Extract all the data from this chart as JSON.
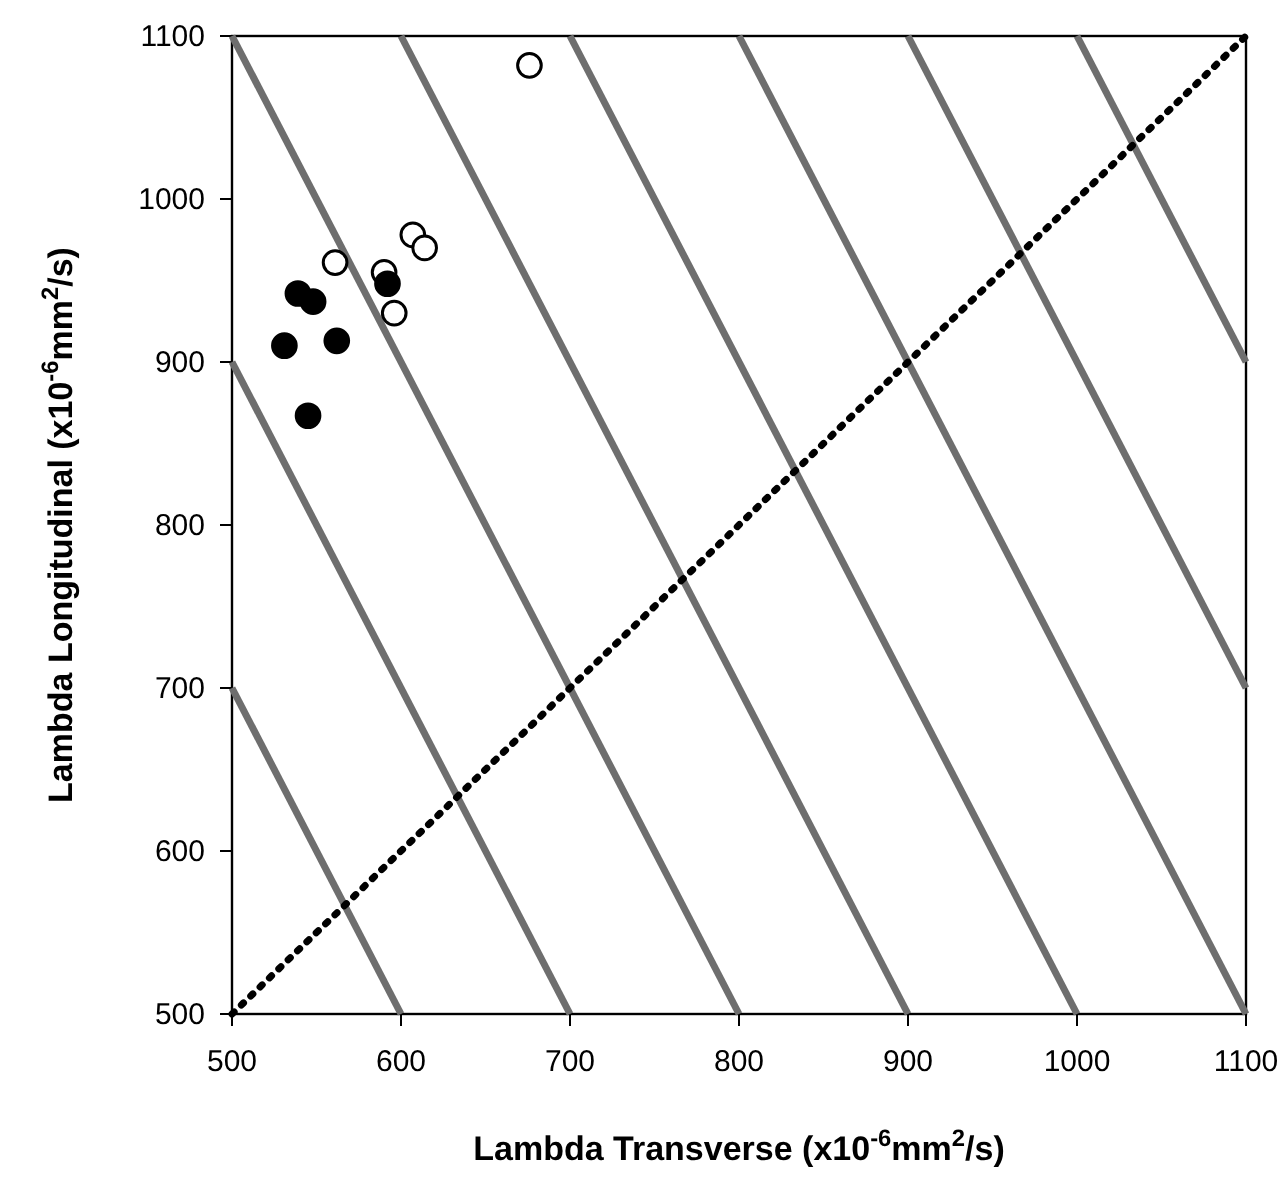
{
  "chart_data": {
    "type": "scatter",
    "xlabel": "Lambda Transverse (x10$^{-6}$mm$^{2}$/s)",
    "ylabel": "Lambda Longitudinal (x10$^{-6}$mm$^{2}$/s)",
    "xlim": [
      500,
      1100
    ],
    "ylim": [
      500,
      1100
    ],
    "xticks": [
      500,
      600,
      700,
      800,
      900,
      1000,
      1100
    ],
    "yticks": [
      500,
      600,
      700,
      800,
      900,
      1000,
      1100
    ],
    "grid": false,
    "series": [
      {
        "type": "line",
        "color": "#6e6e6e",
        "x": [
          500,
          600
        ],
        "values": [
          700,
          500
        ]
      },
      {
        "type": "line",
        "color": "#6e6e6e",
        "x": [
          500,
          700
        ],
        "values": [
          900,
          500
        ]
      },
      {
        "type": "line",
        "color": "#6e6e6e",
        "x": [
          500,
          800
        ],
        "values": [
          1100,
          500
        ]
      },
      {
        "type": "line",
        "color": "#6e6e6e",
        "x": [
          600,
          900
        ],
        "values": [
          1100,
          500
        ]
      },
      {
        "type": "line",
        "color": "#6e6e6e",
        "x": [
          700,
          1000
        ],
        "values": [
          1100,
          500
        ]
      },
      {
        "type": "line",
        "color": "#6e6e6e",
        "x": [
          800,
          1100
        ],
        "values": [
          1100,
          500
        ]
      },
      {
        "type": "line",
        "color": "#6e6e6e",
        "x": [
          900,
          1100
        ],
        "values": [
          1100,
          700
        ]
      },
      {
        "type": "line",
        "color": "#6e6e6e",
        "x": [
          1000,
          1100
        ],
        "values": [
          1100,
          900
        ]
      },
      {
        "type": "line",
        "color": "#000000",
        "line_style": "dotted",
        "x": [
          500,
          1100
        ],
        "values": [
          500,
          1100
        ]
      },
      {
        "color": "#ffffff",
        "marker": "circle",
        "x": [
          676,
          561,
          607,
          614,
          590,
          596
        ],
        "values": [
          1082,
          961,
          978,
          970,
          955,
          930
        ]
      },
      {
        "color": "#000000",
        "marker": "circle",
        "x": [
          539,
          548,
          531,
          562,
          545,
          592
        ],
        "values": [
          942,
          937,
          910,
          913,
          867,
          948
        ]
      }
    ]
  }
}
